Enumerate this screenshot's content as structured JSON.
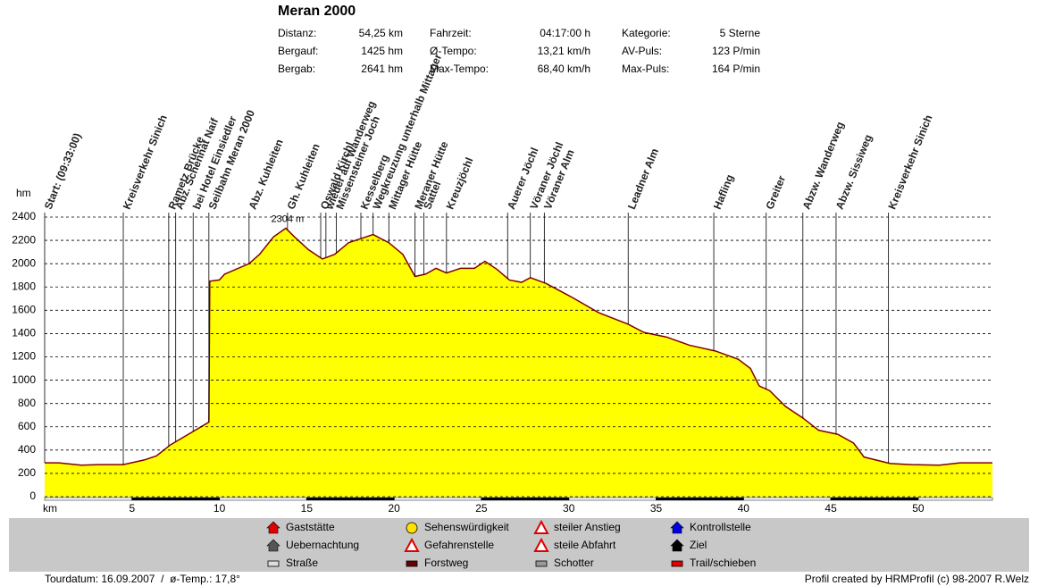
{
  "chart_data": {
    "type": "area",
    "title": "Meran 2000",
    "stats": [
      [
        "Distanz:",
        "54,25 km",
        "Fahrzeit:",
        "04:17:00 h",
        "Kategorie:",
        "5 Sterne"
      ],
      [
        "Bergauf:",
        "1425 hm",
        "Ø-Tempo:",
        "13,21 km/h",
        "AV-Puls:",
        "123 P/min"
      ],
      [
        "Bergab:",
        "2641 hm",
        "Max-Tempo:",
        "68,40 km/h",
        "Max-Puls:",
        "164 P/min"
      ]
    ],
    "y_label": "hm",
    "x_label": "km",
    "x": [
      0,
      0.8,
      2.1,
      3.1,
      4.5,
      5.7,
      6.4,
      7.2,
      8.5,
      9.4,
      9.45,
      10,
      10.3,
      11.7,
      12.3,
      13.1,
      13.8,
      14.3,
      15.1,
      15.9,
      16.6,
      17.4,
      18.2,
      18.8,
      19.7,
      20.5,
      21.2,
      21.8,
      22.4,
      23,
      23.8,
      24.6,
      25.2,
      25.9,
      26.6,
      27.3,
      27.8,
      28.7,
      30.2,
      31.7,
      33.4,
      34.3,
      35.6,
      36.9,
      38.4,
      39.7,
      40.4,
      40.9,
      41.5,
      42.4,
      43.4,
      44.3,
      45.4,
      46.3,
      46.9,
      48.4,
      49.6,
      51.2,
      52.4,
      54.25
    ],
    "values": [
      290,
      290,
      270,
      275,
      275,
      315,
      350,
      445,
      560,
      640,
      1850,
      1860,
      1910,
      2000,
      2080,
      2230,
      2304,
      2230,
      2120,
      2040,
      2080,
      2180,
      2220,
      2250,
      2180,
      2080,
      1890,
      1910,
      1960,
      1920,
      1960,
      1960,
      2020,
      1950,
      1860,
      1840,
      1880,
      1830,
      1710,
      1580,
      1480,
      1410,
      1370,
      1300,
      1250,
      1180,
      1100,
      950,
      910,
      775,
      675,
      570,
      535,
      460,
      340,
      285,
      275,
      270,
      290,
      290
    ],
    "color": "#ffff00",
    "line_color": "#800000",
    "max_label": {
      "value": 2304,
      "label": "2304 m"
    },
    "xlim": [
      0,
      54.25
    ],
    "ylim": [
      0,
      2400
    ],
    "yticks": [
      0,
      200,
      400,
      600,
      800,
      1000,
      1200,
      1400,
      1600,
      1800,
      2000,
      2200,
      2400
    ],
    "xticks": [
      5,
      10,
      15,
      20,
      25,
      30,
      35,
      40,
      45,
      50
    ],
    "grid": true,
    "waypoints": [
      {
        "label": "Start: (09:33:00)",
        "km": 0
      },
      {
        "label": "Kreisverkehr Sinich",
        "km": 4.5
      },
      {
        "label": "Rametz Brücke",
        "km": 7.1
      },
      {
        "label": "Abz. Schennat Naif",
        "km": 7.5
      },
      {
        "label": "bei Hotel Einsiedler",
        "km": 8.5
      },
      {
        "label": "Seilbahn Meran 2000",
        "km": 9.4
      },
      {
        "label": "Abz. Kuhleiten",
        "km": 11.7
      },
      {
        "label": "Gh. Kuhleiten",
        "km": 13.9
      },
      {
        "label": "Oswald Kirchl",
        "km": 15.8
      },
      {
        "label": "wieder auf Wanderweg",
        "km": 16.1
      },
      {
        "label": "Missensteiner Joch",
        "km": 16.7
      },
      {
        "label": "Kesselberg",
        "km": 18.1
      },
      {
        "label": "Wegkreuzung unterhalb Mittager",
        "km": 18.8
      },
      {
        "label": "Mittager Hütte",
        "km": 19.7
      },
      {
        "label": "Meraner Hütte",
        "km": 21.2
      },
      {
        "label": "Sattel",
        "km": 21.7
      },
      {
        "label": "Kreuzjöchl",
        "km": 23.0
      },
      {
        "label": "Auerer Jöchl",
        "km": 26.5
      },
      {
        "label": "Vöraner Jöchl",
        "km": 27.8
      },
      {
        "label": "Vöraner Alm",
        "km": 28.6
      },
      {
        "label": "Leadner Alm",
        "km": 33.4
      },
      {
        "label": "Hafling",
        "km": 38.3
      },
      {
        "label": "Greiter",
        "km": 41.3
      },
      {
        "label": "Abzw. Wanderweg",
        "km": 43.4
      },
      {
        "label": "Abzw. Sissiweg",
        "km": 45.3
      },
      {
        "label": "Kreisverkehr Sinich",
        "km": 48.3
      }
    ],
    "legend": [
      "Gaststätte",
      "Uebernachtung",
      "Straße",
      "Sehenswürdigkeit",
      "Gefahrenstelle",
      "Forstweg",
      "steiler Anstieg",
      "steile Abfahrt",
      "Schotter",
      "Kontrollstelle",
      "Ziel",
      "Trail/schieben"
    ],
    "footer_left": "Tourdatum: 16.09.2007  /  ø-Temp.: 17,8°",
    "footer_right": "Profil created by HRMProfil (c) 98-2007 R.Welz"
  }
}
